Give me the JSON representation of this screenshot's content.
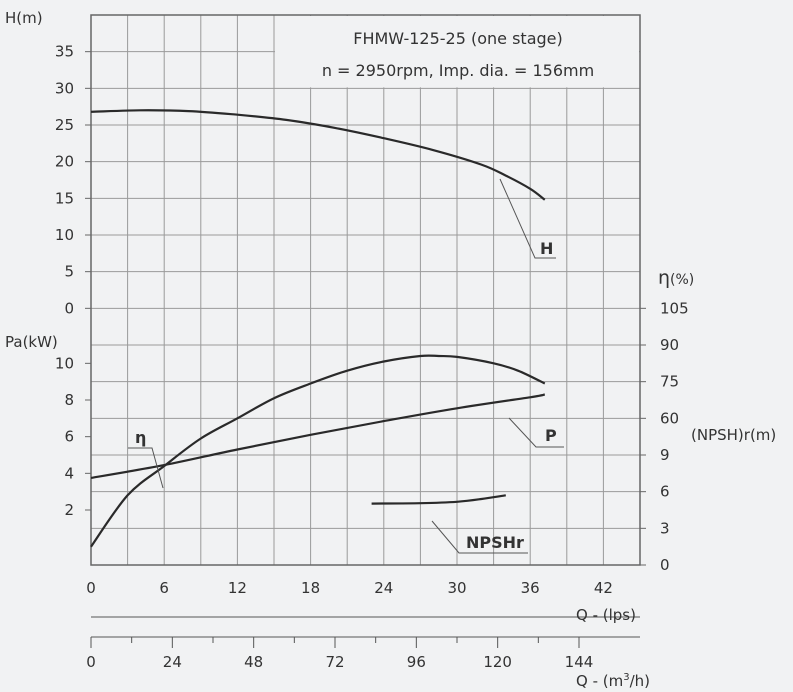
{
  "chart_data": {
    "type": "line",
    "title_lines": [
      "FHMW-125-25 (one stage)",
      "n = 2950rpm, Imp. dia. = 156mm"
    ],
    "axes": {
      "head": {
        "label": "H(m)",
        "ticks": [
          0,
          5,
          10,
          15,
          20,
          25,
          30,
          35
        ]
      },
      "power": {
        "label": "Pa(kW)",
        "ticks": [
          2,
          4,
          6,
          8,
          10
        ]
      },
      "efficiency": {
        "label_main": "η",
        "label_unit": "(%)",
        "ticks": [
          60,
          75,
          90,
          105
        ]
      },
      "npsh": {
        "label": "(NPSH)r(m)",
        "ticks": [
          0,
          3,
          6,
          9
        ]
      },
      "flow_lps": {
        "label": "Q - (lps)",
        "ticks": [
          0,
          6,
          12,
          18,
          24,
          30,
          36,
          42
        ],
        "range": [
          0,
          45
        ]
      },
      "flow_m3h": {
        "label_prefix": "Q - (m",
        "label_sup": "3",
        "label_suffix": "/h)",
        "ticks": [
          0,
          24,
          48,
          72,
          96,
          120,
          144
        ],
        "range": [
          0,
          162
        ]
      }
    },
    "grid": true,
    "series": [
      {
        "name": "H",
        "axis": "head",
        "x": [
          0,
          4,
          8,
          12,
          16,
          20,
          24,
          28,
          32,
          34,
          36,
          37.2
        ],
        "y": [
          26.8,
          27,
          26.9,
          26.4,
          25.7,
          24.6,
          23.2,
          21.6,
          19.6,
          18.1,
          16.3,
          14.8
        ]
      },
      {
        "name": "η",
        "axis": "power",
        "x": [
          0,
          3,
          6,
          9,
          12,
          15,
          18,
          21,
          24,
          27,
          28.5,
          30,
          33,
          35,
          37.2
        ],
        "y": [
          0,
          2.8,
          4.4,
          5.9,
          7.0,
          8.1,
          8.9,
          9.6,
          10.1,
          10.4,
          10.4,
          10.35,
          10.0,
          9.6,
          8.9
        ]
      },
      {
        "name": "P",
        "axis": "power",
        "x": [
          0,
          6,
          12,
          18,
          24,
          30,
          36,
          37.2
        ],
        "y": [
          3.75,
          4.45,
          5.3,
          6.1,
          6.85,
          7.55,
          8.15,
          8.3
        ]
      },
      {
        "name": "NPSHr",
        "axis": "power",
        "x": [
          23,
          27,
          30,
          32,
          34
        ],
        "y": [
          2.35,
          2.37,
          2.45,
          2.6,
          2.8
        ]
      }
    ]
  }
}
